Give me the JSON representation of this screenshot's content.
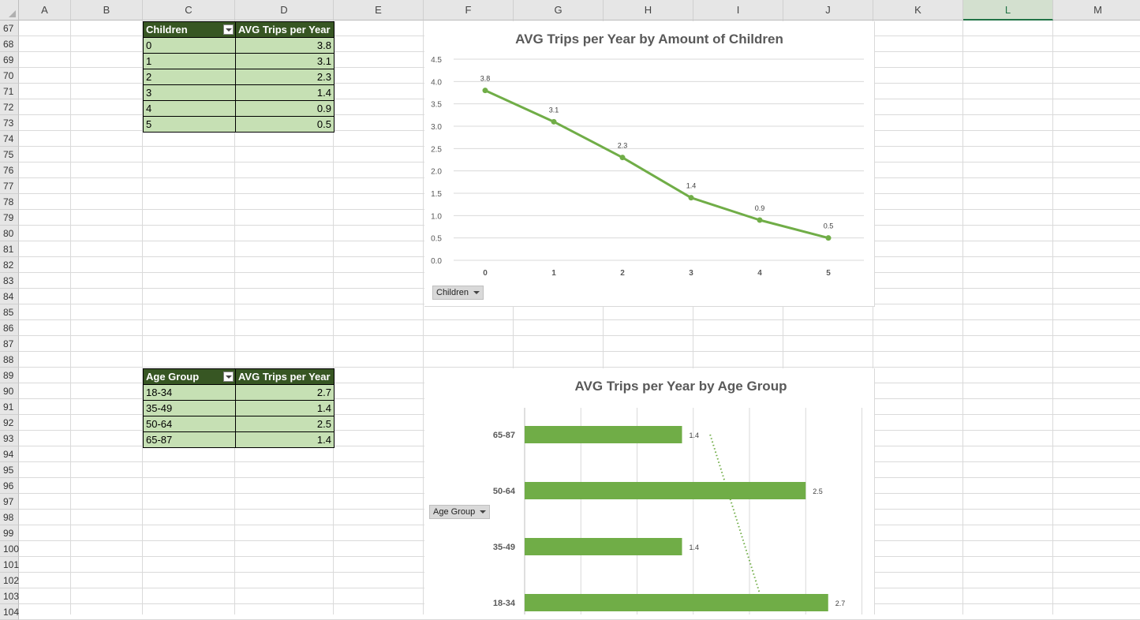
{
  "sheet": {
    "columns": [
      "A",
      "B",
      "C",
      "D",
      "E",
      "F",
      "G",
      "H",
      "I",
      "J",
      "K",
      "L",
      "M"
    ],
    "selected_column": "L",
    "rows": [
      "67",
      "68",
      "69",
      "70",
      "71",
      "72",
      "73",
      "74",
      "75",
      "76",
      "77",
      "78",
      "79",
      "80",
      "81",
      "82",
      "83",
      "84",
      "85",
      "86",
      "87",
      "88",
      "89",
      "90",
      "91",
      "92",
      "93",
      "94",
      "95",
      "96",
      "97",
      "98",
      "99",
      "100",
      "101",
      "102",
      "103",
      "104"
    ]
  },
  "pivot_children": {
    "header_col1": "Children",
    "header_col2": "AVG Trips per Year",
    "rows": [
      {
        "key": "0",
        "value": "3.8"
      },
      {
        "key": "1",
        "value": "3.1"
      },
      {
        "key": "2",
        "value": "2.3"
      },
      {
        "key": "3",
        "value": "1.4"
      },
      {
        "key": "4",
        "value": "0.9"
      },
      {
        "key": "5",
        "value": "0.5"
      }
    ]
  },
  "pivot_age": {
    "header_col1": "Age Group",
    "header_col2": "AVG Trips per Year",
    "rows": [
      {
        "key": "18-34",
        "value": "2.7"
      },
      {
        "key": "35-49",
        "value": "1.4"
      },
      {
        "key": "50-64",
        "value": "2.5"
      },
      {
        "key": "65-87",
        "value": "1.4"
      }
    ]
  },
  "chart_data": [
    {
      "type": "line",
      "title": "AVG Trips per Year by Amount of Children",
      "x": [
        "0",
        "1",
        "2",
        "3",
        "4",
        "5"
      ],
      "values": [
        3.8,
        3.1,
        2.3,
        1.4,
        0.9,
        0.5
      ],
      "data_labels": [
        "3.8",
        "3.1",
        "2.3",
        "1.4",
        "0.9",
        "0.5"
      ],
      "ylim": [
        0,
        4.5
      ],
      "yticks": [
        "0.0",
        "0.5",
        "1.0",
        "1.5",
        "2.0",
        "2.5",
        "3.0",
        "3.5",
        "4.0",
        "4.5"
      ],
      "grid": true,
      "color": "#70ad47",
      "field_button": "Children"
    },
    {
      "type": "bar",
      "orientation": "horizontal",
      "title": "AVG Trips per Year by Age Group",
      "categories": [
        "18-34",
        "35-49",
        "50-64",
        "65-87"
      ],
      "values": [
        2.7,
        1.4,
        2.5,
        1.4
      ],
      "data_labels": [
        "2.7",
        "1.4",
        "2.5",
        "1.4"
      ],
      "trendline": "linear dotted",
      "grid": true,
      "color": "#70ad47",
      "field_button": "Age Group"
    }
  ]
}
